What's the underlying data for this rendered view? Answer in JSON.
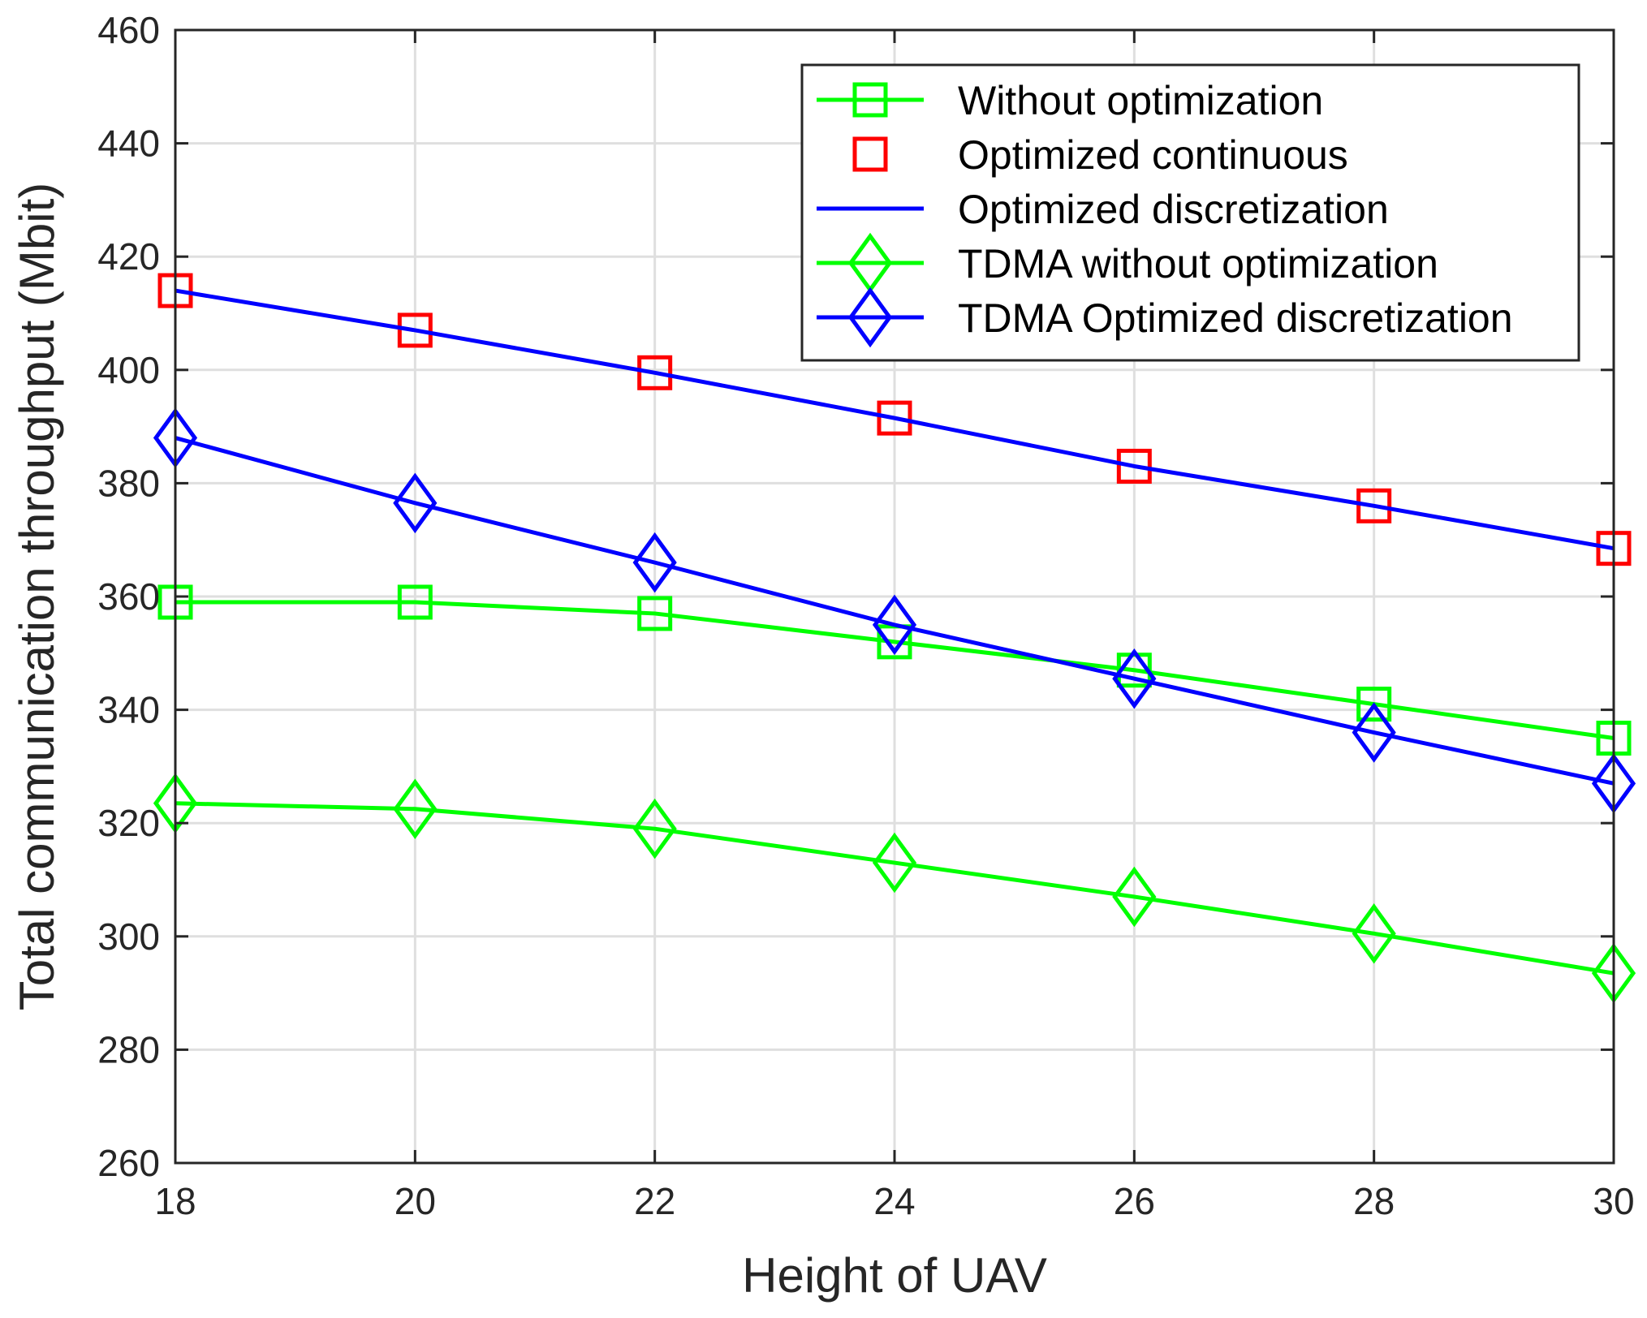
{
  "chart_data": {
    "type": "line",
    "title": "",
    "xlabel": "Height of UAV",
    "ylabel": "Total communication throughput (Mbit)",
    "x": [
      18,
      20,
      22,
      24,
      26,
      28,
      30
    ],
    "xlim": [
      18,
      30
    ],
    "ylim": [
      260,
      460
    ],
    "xticks": [
      "18",
      "20",
      "22",
      "24",
      "26",
      "28",
      "30"
    ],
    "yticks": [
      "260",
      "280",
      "300",
      "320",
      "340",
      "360",
      "380",
      "400",
      "420",
      "440",
      "460"
    ],
    "grid": true,
    "legend_position": "top-right",
    "series": [
      {
        "name": "Without optimization",
        "color": "#00ff00",
        "marker": "square",
        "line": true,
        "values": [
          359,
          359,
          357,
          352,
          347,
          341,
          335
        ]
      },
      {
        "name": "Optimized continuous",
        "color": "#ff0000",
        "marker": "square",
        "line": false,
        "values": [
          414,
          407,
          399.5,
          391.5,
          383,
          376,
          368.5
        ]
      },
      {
        "name": "Optimized discretization",
        "color": "#0000ff",
        "marker": "none",
        "line": true,
        "values": [
          414,
          407,
          399.5,
          391.5,
          383,
          376,
          368.5
        ]
      },
      {
        "name": "TDMA without optimization",
        "color": "#00ff00",
        "marker": "diamond",
        "line": true,
        "values": [
          323.5,
          322.5,
          319,
          313,
          307,
          300.5,
          293.5
        ]
      },
      {
        "name": "TDMA Optimized discretization",
        "color": "#0000ff",
        "marker": "diamond",
        "line": true,
        "values": [
          388,
          376.5,
          366,
          355,
          345.5,
          336,
          327
        ]
      }
    ]
  }
}
